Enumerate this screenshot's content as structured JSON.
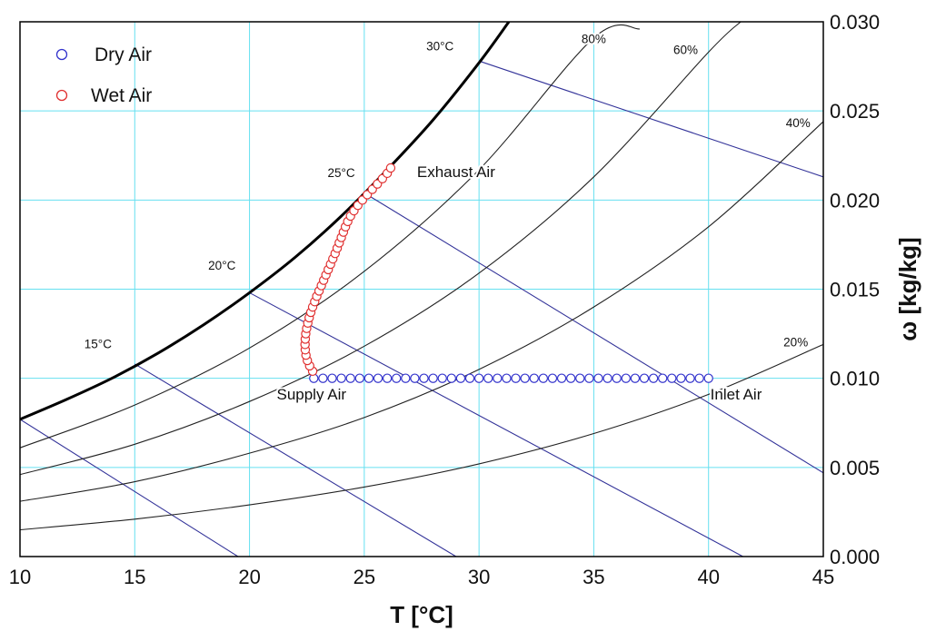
{
  "chart_data": {
    "type": "scatter",
    "xlabel": "T [°C]",
    "ylabel": "ω [kg/kg]",
    "xlim": [
      10,
      45
    ],
    "ylim": [
      0.0,
      0.03
    ],
    "x_ticks": [
      "10",
      "15",
      "20",
      "25",
      "30",
      "35",
      "40",
      "45"
    ],
    "y_ticks": [
      "0.000",
      "0.005",
      "0.010",
      "0.015",
      "0.020",
      "0.025",
      "0.030"
    ],
    "grid": true,
    "legend_position": "top-left",
    "colors": {
      "dry_air": "#3333cc",
      "wet_air": "#e03030",
      "grid": "#66e0f0",
      "enthalpy_lines": "#333399",
      "rh_curves": "#222222",
      "saturation": "#000000"
    },
    "series": [
      {
        "name": "Dry Air",
        "marker": "circle",
        "x": [
          22.8,
          23.2,
          23.6,
          24.0,
          24.4,
          24.8,
          25.2,
          25.6,
          26.0,
          26.4,
          26.8,
          27.2,
          27.6,
          28.0,
          28.4,
          28.8,
          29.2,
          29.6,
          30.0,
          30.4,
          30.8,
          31.2,
          31.6,
          32.0,
          32.4,
          32.8,
          33.2,
          33.6,
          34.0,
          34.4,
          34.8,
          35.2,
          35.6,
          36.0,
          36.4,
          36.8,
          37.2,
          37.6,
          38.0,
          38.4,
          38.8,
          39.2,
          39.6,
          40.0
        ],
        "y": [
          0.01,
          0.01,
          0.01,
          0.01,
          0.01,
          0.01,
          0.01,
          0.01,
          0.01,
          0.01,
          0.01,
          0.01,
          0.01,
          0.01,
          0.01,
          0.01,
          0.01,
          0.01,
          0.01,
          0.01,
          0.01,
          0.01,
          0.01,
          0.01,
          0.01,
          0.01,
          0.01,
          0.01,
          0.01,
          0.01,
          0.01,
          0.01,
          0.01,
          0.01,
          0.01,
          0.01,
          0.01,
          0.01,
          0.01,
          0.01,
          0.01,
          0.01,
          0.01,
          0.01
        ]
      },
      {
        "name": "Wet Air",
        "marker": "circle",
        "x": [
          22.75,
          22.62,
          22.52,
          22.46,
          22.43,
          22.42,
          22.43,
          22.45,
          22.49,
          22.54,
          22.6,
          22.67,
          22.75,
          22.84,
          22.93,
          23.03,
          23.13,
          23.23,
          23.33,
          23.43,
          23.53,
          23.63,
          23.73,
          23.82,
          23.91,
          24.0,
          24.09,
          24.18,
          24.28,
          24.4,
          24.55,
          24.72,
          24.92,
          25.13,
          25.35,
          25.57,
          25.79,
          26.0,
          26.15
        ],
        "y": [
          0.0104,
          0.0107,
          0.011,
          0.0113,
          0.0116,
          0.0119,
          0.0122,
          0.0125,
          0.0128,
          0.0131,
          0.0134,
          0.0137,
          0.014,
          0.0143,
          0.0146,
          0.0149,
          0.0152,
          0.0155,
          0.0158,
          0.0161,
          0.0164,
          0.0167,
          0.017,
          0.0173,
          0.0176,
          0.0179,
          0.0182,
          0.0185,
          0.0188,
          0.0191,
          0.0194,
          0.0197,
          0.02,
          0.0203,
          0.0206,
          0.0209,
          0.0212,
          0.0215,
          0.0218
        ]
      }
    ],
    "saturation_curve": {
      "x": [
        10,
        12,
        14,
        16,
        18,
        20,
        22,
        24,
        26,
        28,
        30,
        31.3
      ],
      "y": [
        0.0077,
        0.0088,
        0.01,
        0.0114,
        0.013,
        0.0148,
        0.0168,
        0.0191,
        0.0217,
        0.0245,
        0.0277,
        0.03
      ]
    },
    "rh_curves": [
      {
        "label": "80%",
        "x": [
          10,
          15,
          20,
          25,
          30,
          35,
          37.0
        ],
        "y": [
          0.0061,
          0.0085,
          0.0117,
          0.016,
          0.0217,
          0.0291,
          0.0296
        ]
      },
      {
        "label": "60%",
        "x": [
          10,
          15,
          20,
          25,
          30,
          35,
          40,
          41.4
        ],
        "y": [
          0.0046,
          0.0063,
          0.0087,
          0.0118,
          0.0159,
          0.0213,
          0.0283,
          0.03
        ]
      },
      {
        "label": "40%",
        "x": [
          10,
          15,
          20,
          25,
          30,
          35,
          40,
          45
        ],
        "y": [
          0.0031,
          0.0042,
          0.0058,
          0.0078,
          0.0105,
          0.014,
          0.0185,
          0.0244
        ]
      },
      {
        "label": "20%",
        "x": [
          10,
          15,
          20,
          25,
          30,
          35,
          40,
          45
        ],
        "y": [
          0.0015,
          0.0021,
          0.0029,
          0.0039,
          0.0052,
          0.0069,
          0.0091,
          0.0119
        ]
      }
    ],
    "constant_temperature_lines": [
      {
        "label": "15°C",
        "start": [
          15.0,
          0.0108
        ],
        "end": [
          29.0,
          0.0
        ]
      },
      {
        "label": "20°C",
        "start": [
          20.0,
          0.0148
        ],
        "end": [
          41.5,
          0.0
        ]
      },
      {
        "label": "25°C",
        "start": [
          25.0,
          0.0204
        ],
        "end": [
          45.0,
          0.0047
        ]
      },
      {
        "label": "30°C",
        "start": [
          30.0,
          0.0278
        ],
        "end": [
          45.0,
          0.0213
        ]
      },
      {
        "label": "",
        "start": [
          10.0,
          0.0077
        ],
        "end": [
          19.5,
          0.0
        ]
      }
    ],
    "curve_labels": [
      {
        "text": "30°C",
        "x": 28.3,
        "y": 0.0284
      },
      {
        "text": "25°C",
        "x": 24.0,
        "y": 0.0213
      },
      {
        "text": "20°C",
        "x": 18.8,
        "y": 0.0161
      },
      {
        "text": "15°C",
        "x": 13.4,
        "y": 0.0117
      },
      {
        "text": "80%",
        "x": 35.0,
        "y": 0.0288
      },
      {
        "text": "60%",
        "x": 39.0,
        "y": 0.0282
      },
      {
        "text": "40%",
        "x": 43.9,
        "y": 0.0241
      },
      {
        "text": "20%",
        "x": 43.8,
        "y": 0.0118
      }
    ],
    "annotations": [
      {
        "text": "Exhaust Air",
        "x": 29.0,
        "y": 0.0213
      },
      {
        "text": "Supply Air",
        "x": 22.7,
        "y": 0.0088
      },
      {
        "text": "Inlet Air",
        "x": 41.2,
        "y": 0.0088
      }
    ]
  }
}
